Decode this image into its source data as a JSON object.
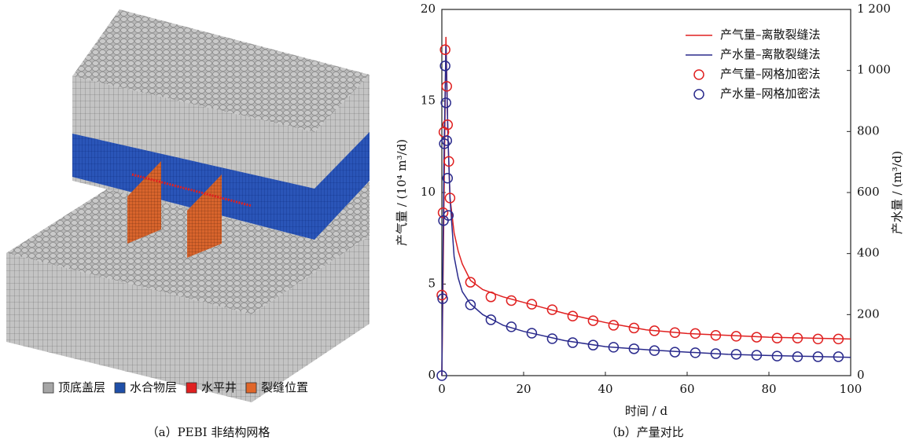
{
  "figure_a": {
    "caption": "（a）PEBI 非结构网格",
    "legend": [
      {
        "label": "顶底盖层",
        "color": "#a6a6a6"
      },
      {
        "label": "水合物层",
        "color": "#1f4fa8"
      },
      {
        "label": "水平井",
        "color": "#e02020"
      },
      {
        "label": "裂缝位置",
        "color": "#e0662a"
      }
    ]
  },
  "chart_data": {
    "type": "line",
    "caption": "（b）产量对比",
    "xlabel": "时间 / d",
    "ylabel": "产气量 / (10⁴ m³/d)",
    "y2label": "产水量 / (m³/d)",
    "xlim": [
      0,
      100
    ],
    "xticks": [
      0,
      20,
      40,
      60,
      80,
      100
    ],
    "ylim": [
      0,
      20
    ],
    "yticks": [
      0,
      5,
      10,
      15,
      20
    ],
    "y2lim": [
      0,
      1200
    ],
    "y2ticks": [
      0,
      200,
      400,
      600,
      800,
      {
        "value": 1000,
        "label": "1 000"
      },
      {
        "value": 1200,
        "label": "1 200"
      }
    ],
    "legend": "upper right",
    "series": [
      {
        "name": "产气量–离散裂缝法",
        "color": "#e02020",
        "style": "line",
        "axis": "y",
        "x": [
          0,
          0.5,
          1,
          1.5,
          2,
          3,
          4,
          5,
          7,
          10,
          15,
          20,
          25,
          30,
          35,
          40,
          45,
          50,
          60,
          70,
          80,
          90,
          100
        ],
        "values": [
          0,
          9,
          18.5,
          13,
          9.7,
          7.8,
          6.8,
          6.1,
          5.2,
          4.7,
          4.3,
          4.0,
          3.7,
          3.4,
          3.15,
          2.9,
          2.7,
          2.5,
          2.3,
          2.2,
          2.1,
          2.05,
          2.0
        ]
      },
      {
        "name": "产水量–离散裂缝法",
        "color": "#2a2a8c",
        "style": "line",
        "axis": "y2",
        "x": [
          0,
          0.5,
          1,
          1.5,
          2,
          3,
          4,
          5,
          7,
          10,
          15,
          20,
          30,
          40,
          50,
          60,
          70,
          80,
          90,
          100
        ],
        "values": [
          0,
          700,
          1080,
          780,
          580,
          390,
          320,
          275,
          235,
          200,
          165,
          145,
          115,
          95,
          85,
          77,
          70,
          66,
          63,
          60
        ]
      },
      {
        "name": "产气量–网格加密法",
        "color": "#e02020",
        "style": "marker",
        "axis": "y",
        "x": [
          0,
          0.3,
          0.5,
          0.8,
          1.2,
          1.4,
          1.7,
          2,
          7,
          12,
          17,
          22,
          27,
          32,
          37,
          42,
          47,
          52,
          57,
          62,
          67,
          72,
          77,
          82,
          87,
          92,
          97
        ],
        "values": [
          4.4,
          8.9,
          13.3,
          17.8,
          15.8,
          13.7,
          11.7,
          9.7,
          5.1,
          4.3,
          4.1,
          3.9,
          3.6,
          3.25,
          3.0,
          2.75,
          2.6,
          2.45,
          2.35,
          2.3,
          2.2,
          2.15,
          2.1,
          2.05,
          2.05,
          2.0,
          2.0
        ]
      },
      {
        "name": "产水量–网格加密法",
        "color": "#2a2a8c",
        "style": "marker",
        "axis": "y2",
        "x": [
          0,
          0.2,
          0.4,
          0.6,
          0.8,
          1,
          1.2,
          1.4,
          1.6,
          7,
          12,
          17,
          22,
          27,
          32,
          37,
          42,
          47,
          52,
          57,
          62,
          67,
          72,
          77,
          82,
          87,
          92,
          97
        ],
        "values": [
          0,
          252,
          508,
          760,
          1015,
          894,
          770,
          647,
          525,
          232,
          183,
          160,
          139,
          121,
          108,
          100,
          93,
          88,
          82,
          77,
          75,
          72,
          70,
          67,
          64,
          62,
          62,
          62
        ]
      }
    ]
  }
}
